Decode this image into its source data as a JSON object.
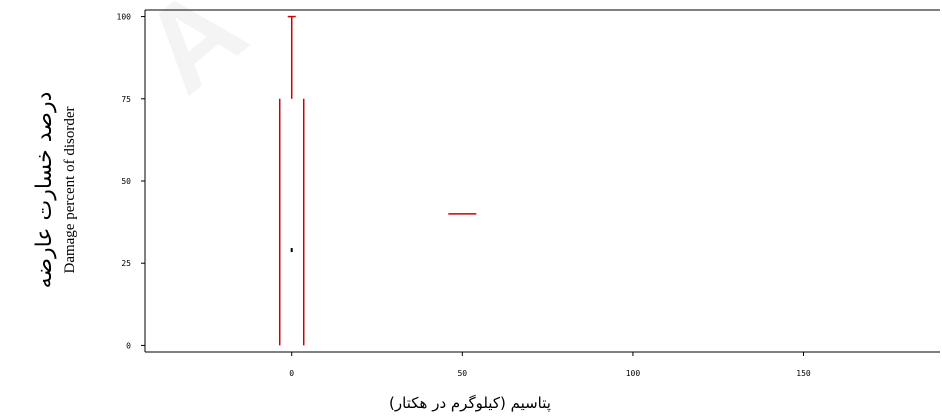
{
  "chart_data": {
    "type": "boxplot",
    "title": "",
    "xlabel": "پتاسیم (کیلوگرم در هکتار)",
    "ylabel_fa": "درصد خسارت عارضه",
    "ylabel_en": "Damage percent of disorder",
    "xlim": [
      -43,
      190
    ],
    "ylim": [
      -2,
      102
    ],
    "x_ticks": [
      0,
      50,
      100,
      150
    ],
    "x_tick_labels": [
      "0",
      "50",
      "100",
      "150"
    ],
    "y_ticks": [
      0,
      25,
      50,
      75,
      100
    ],
    "y_tick_labels": [
      "0",
      "25",
      "50",
      "75",
      "100"
    ],
    "grid": false,
    "series": [
      {
        "x": 0,
        "min": 0,
        "q1": 0,
        "median": 29,
        "q3": 75,
        "max": 100,
        "color": "#cc0000"
      },
      {
        "x": 50,
        "min": 40,
        "q1": 40,
        "median": 40,
        "q3": 40,
        "max": 40,
        "color": "#cc0000"
      }
    ]
  }
}
